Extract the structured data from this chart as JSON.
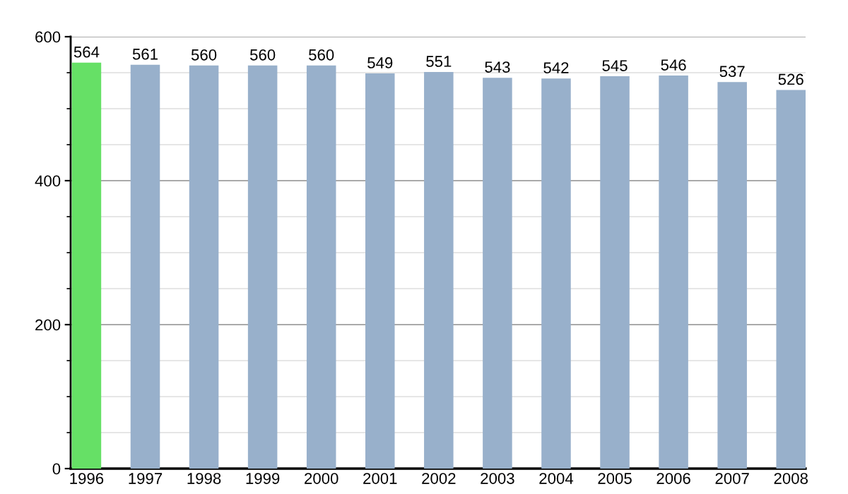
{
  "chart_data": {
    "type": "bar",
    "categories": [
      "1996",
      "1997",
      "1998",
      "1999",
      "2000",
      "2001",
      "2002",
      "2003",
      "2004",
      "2005",
      "2006",
      "2007",
      "2008"
    ],
    "values": [
      564,
      561,
      560,
      560,
      560,
      549,
      551,
      543,
      542,
      545,
      546,
      537,
      526
    ],
    "colors": [
      "#66e066",
      "#98b0cb",
      "#98b0cb",
      "#98b0cb",
      "#98b0cb",
      "#98b0cb",
      "#98b0cb",
      "#98b0cb",
      "#98b0cb",
      "#98b0cb",
      "#98b0cb",
      "#98b0cb",
      "#98b0cb"
    ],
    "ylim": [
      0,
      600
    ],
    "yticks": [
      0,
      200,
      400,
      600
    ],
    "grid": "y",
    "data_labels": true
  }
}
